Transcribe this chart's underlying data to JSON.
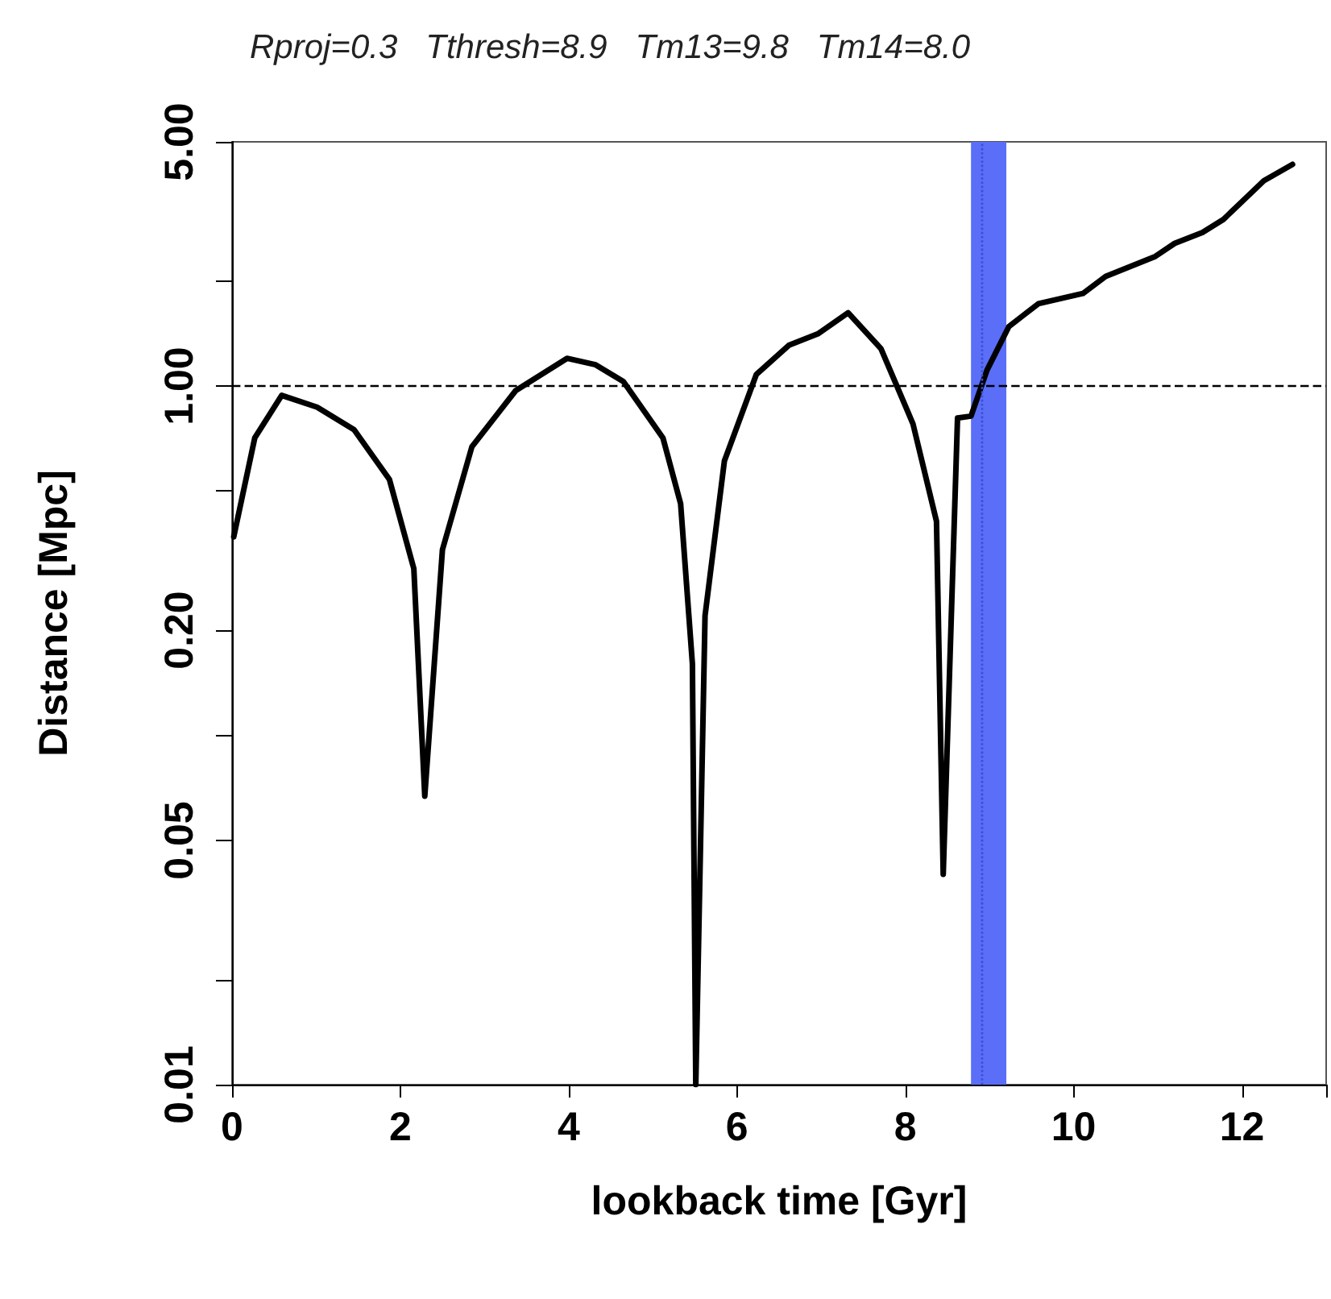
{
  "chart_data": {
    "type": "line",
    "title": "Rproj=0.3   Tthresh=8.9   Tm13=9.8   Tm14=8.0",
    "xlabel": "lookback time [Gyr]",
    "ylabel": "Distance [Mpc]",
    "x": [
      0.02,
      0.27,
      0.59,
      1.01,
      1.45,
      1.87,
      2.16,
      2.29,
      2.5,
      2.85,
      3.37,
      3.98,
      4.32,
      4.65,
      5.12,
      5.33,
      5.47,
      5.51,
      5.62,
      5.85,
      6.23,
      6.62,
      6.96,
      7.32,
      7.71,
      8.09,
      8.37,
      8.45,
      8.62,
      8.78,
      8.97,
      9.23,
      9.58,
      10.11,
      10.38,
      10.97,
      11.2,
      11.53,
      11.78,
      12.26,
      12.6
    ],
    "series": [
      {
        "color": "#000000",
        "values": [
          0.37,
          0.71,
          0.94,
          0.87,
          0.75,
          0.54,
          0.3,
          0.067,
          0.34,
          0.67,
          0.97,
          1.2,
          1.15,
          1.03,
          0.71,
          0.46,
          0.16,
          0.01,
          0.22,
          0.61,
          1.08,
          1.31,
          1.41,
          1.62,
          1.28,
          0.78,
          0.41,
          0.04,
          0.81,
          0.82,
          1.11,
          1.48,
          1.72,
          1.84,
          2.06,
          2.35,
          2.56,
          2.75,
          3.0,
          3.87,
          4.31
        ]
      }
    ],
    "xlim": [
      0,
      13
    ],
    "xticks": [
      0,
      2,
      4,
      6,
      8,
      10,
      12
    ],
    "ylim": [
      0.01,
      5
    ],
    "yticks": [
      {
        "value": 0.01,
        "label": "0.01"
      },
      {
        "value": 0.02,
        "label": null
      },
      {
        "value": 0.05,
        "label": "0.05"
      },
      {
        "value": 0.1,
        "label": null
      },
      {
        "value": 0.2,
        "label": "0.20"
      },
      {
        "value": 0.5,
        "label": null
      },
      {
        "value": 1,
        "label": "1.00"
      },
      {
        "value": 2,
        "label": null
      },
      {
        "value": 5,
        "label": "5.00"
      }
    ],
    "log": "y",
    "grid": false,
    "marker": "none",
    "line_style": "solid",
    "ref_lines": [
      {
        "axis": "y",
        "value": 1,
        "line_style": "dashed",
        "color": "#000000"
      },
      {
        "axis": "x",
        "value": 8.9,
        "line_style": "dotted",
        "color": "#3a4fd0"
      }
    ],
    "bands": [
      {
        "axis": "x",
        "from": 8.78,
        "to": 9.2,
        "color": "#5a6ef8"
      }
    ]
  }
}
